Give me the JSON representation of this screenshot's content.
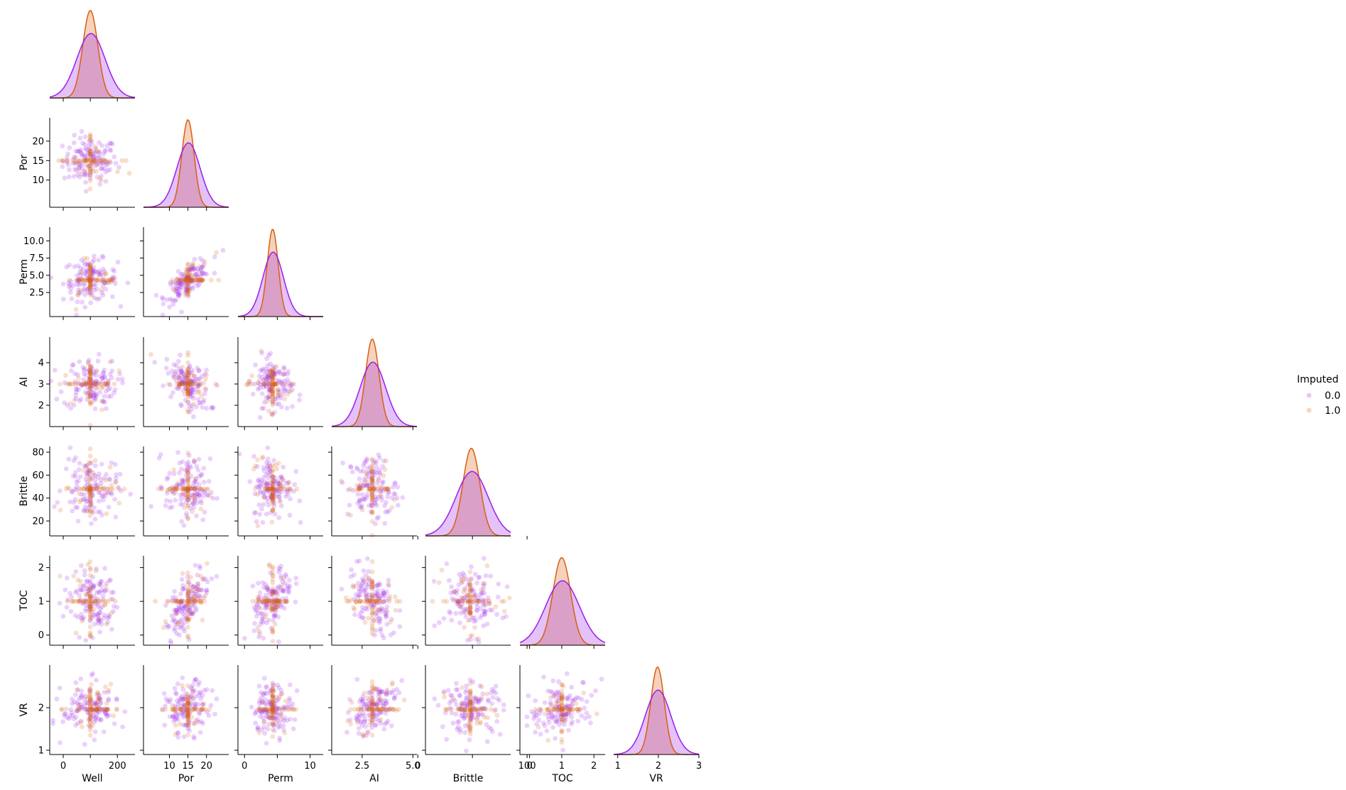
{
  "colors": {
    "original": "#9b1fe8",
    "imputed": "#d95f0e",
    "kde_fill": "#cf8fbd"
  },
  "legend": {
    "title": "Imputed",
    "items": [
      {
        "label": "0.0",
        "color": "#9b1fe8"
      },
      {
        "label": "1.0",
        "color": "#d95f0e"
      }
    ]
  },
  "chart_data": {
    "type": "scatter",
    "layout": "pairplot-lower-triangle",
    "hue": "Imputed",
    "variables": [
      {
        "name": "Well",
        "range": [
          -50,
          265
        ],
        "ticks": [
          0,
          100,
          200
        ],
        "tick_labels": [
          "0",
          "",
          "200"
        ],
        "center": 100,
        "spread": 50,
        "imputed_value": 100
      },
      {
        "name": "Por",
        "range": [
          3,
          26
        ],
        "ticks": [
          10,
          15,
          20
        ],
        "tick_labels": [
          "10",
          "15",
          "20"
        ],
        "center": 15,
        "spread": 3,
        "imputed_value": 15
      },
      {
        "name": "Perm",
        "range": [
          -1,
          12
        ],
        "ticks": [
          2.5,
          5.0,
          7.5,
          10.0
        ],
        "tick_labels": [
          "2.5",
          "5.0",
          "7.5",
          "10.0"
        ],
        "x_ticks": [
          0,
          5,
          10
        ],
        "x_tick_labels": [
          "0",
          "",
          "10"
        ],
        "center": 4.3,
        "spread": 1.5,
        "imputed_value": 4.3
      },
      {
        "name": "AI",
        "range": [
          1.0,
          5.2
        ],
        "ticks": [
          2,
          3,
          4
        ],
        "tick_labels": [
          "2",
          "3",
          "4"
        ],
        "x_ticks": [
          2.5,
          5.0
        ],
        "x_tick_labels": [
          "2.5",
          "5.0"
        ],
        "center": 3.0,
        "spread": 0.6,
        "imputed_value": 3.0
      },
      {
        "name": "Brittle",
        "range": [
          7,
          85
        ],
        "ticks": [
          20,
          40,
          60,
          80
        ],
        "tick_labels": [
          "20",
          "40",
          "60",
          "80"
        ],
        "x_ticks": [
          0,
          50,
          100
        ],
        "x_tick_labels": [
          "0",
          "",
          "100"
        ],
        "center": 49,
        "spread": 14,
        "imputed_value": 48
      },
      {
        "name": "TOC",
        "range": [
          -0.3,
          2.35
        ],
        "ticks": [
          0,
          1,
          2
        ],
        "tick_labels": [
          "0",
          "1",
          "2"
        ],
        "x_ticks": [
          0,
          1,
          2
        ],
        "x_tick_labels": [
          "0",
          "1",
          "2"
        ],
        "center": 1.0,
        "spread": 0.5,
        "imputed_value": 1.0
      },
      {
        "name": "VR",
        "range": [
          0.9,
          3.0
        ],
        "ticks": [
          1,
          2
        ],
        "tick_labels": [
          "1",
          "2"
        ],
        "x_ticks": [
          1,
          2,
          3
        ],
        "x_tick_labels": [
          "1",
          "2",
          "3"
        ],
        "center": 1.98,
        "spread": 0.3,
        "imputed_value": 1.96
      }
    ],
    "correlations": {
      "Por|Perm": 0.75,
      "Por|AI": -0.45,
      "Por|TOC": 0.65,
      "Perm|TOC": 0.5,
      "AI|TOC": -0.4,
      "AI|VR": 0.4,
      "Brittle|TOC": -0.2,
      "TOC|VR": 0.25,
      "Por|Brittle": -0.1,
      "Perm|AI": -0.2,
      "Por|VR": 0.1
    },
    "n_original": 120,
    "n_imputed": 80
  }
}
